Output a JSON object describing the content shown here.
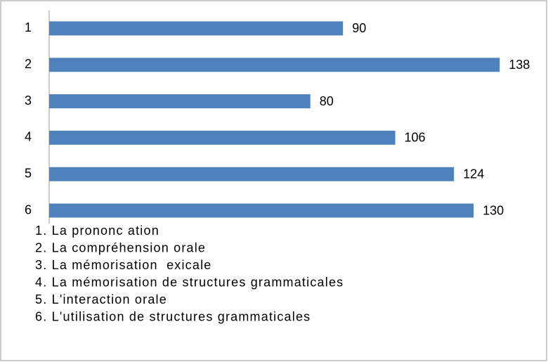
{
  "chart_data": {
    "type": "bar",
    "orientation": "horizontal",
    "categories": [
      "1",
      "2",
      "3",
      "4",
      "5",
      "6"
    ],
    "values": [
      90,
      138,
      80,
      106,
      124,
      130
    ],
    "color": "#4f81bd",
    "xlim": [
      0,
      150
    ],
    "annotations": [
      "1. La prononc ation",
      "2. La compréhension orale",
      "3. La mémorisation  exicale",
      "4. La mémorisation de structures grammaticales",
      "5. L'interaction orale",
      "6. L'utilisation de structures grammaticales"
    ]
  }
}
